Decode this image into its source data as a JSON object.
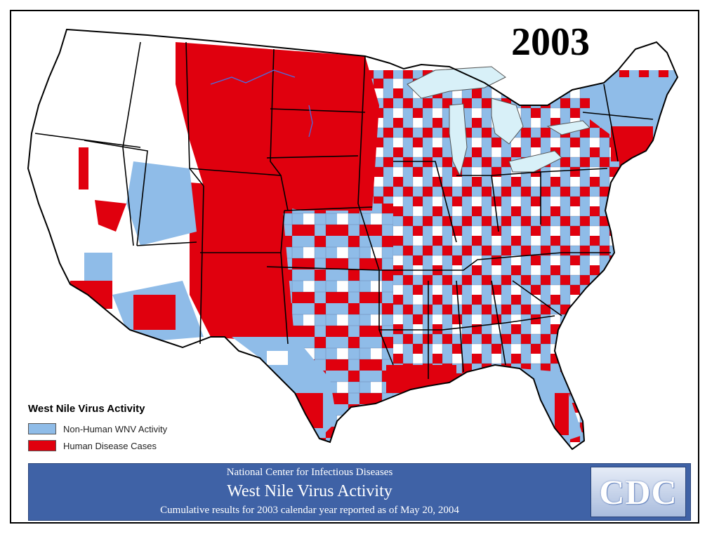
{
  "year": "2003",
  "legend": {
    "title": "West Nile Virus Activity",
    "items": [
      {
        "label": "Non-Human WNV Activity",
        "color": "#8fbce8"
      },
      {
        "label": "Human Disease Cases",
        "color": "#e0000e"
      }
    ]
  },
  "banner": {
    "line1": "National Center for Infectious Diseases",
    "line2": "West Nile Virus Activity",
    "line3": "Cumulative results for 2003 calendar year reported as of May 20, 2004",
    "background": "#3f62a6"
  },
  "logo": {
    "text": "CDC"
  },
  "colors": {
    "human": "#e0000e",
    "non_human": "#8fbce8",
    "none": "#ffffff",
    "water": "#d8f0f8",
    "border": "#000000"
  }
}
